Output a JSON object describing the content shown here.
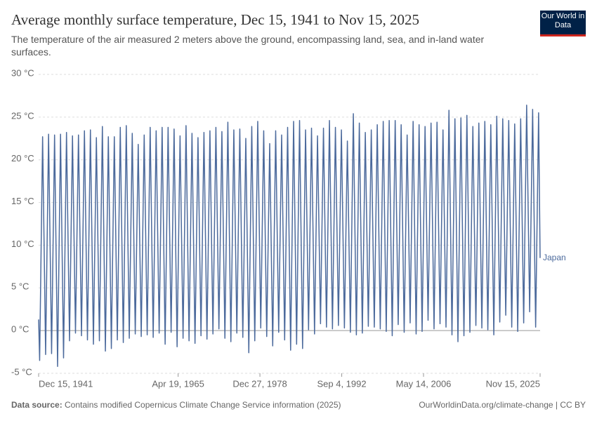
{
  "chart_data": {
    "type": "line",
    "title": "Average monthly surface temperature, Dec 15, 1941 to Nov 15, 2025",
    "subtitle": "The temperature of the air measured 2 meters above the ground, encompassing land, sea, and in-land water surfaces.",
    "logo": "Our World in Data",
    "source_label": "Data source:",
    "source": "Contains modified Copernicus Climate Change Service information (2025)",
    "credit": "OurWorldinData.org/climate-change | CC BY",
    "ylim": [
      -5,
      30
    ],
    "yticks": [
      {
        "value": -5,
        "label": "-5 °C"
      },
      {
        "value": 0,
        "label": "0 °C"
      },
      {
        "value": 5,
        "label": "5 °C"
      },
      {
        "value": 10,
        "label": "10 °C"
      },
      {
        "value": 15,
        "label": "15 °C"
      },
      {
        "value": 20,
        "label": "20 °C"
      },
      {
        "value": 25,
        "label": "25 °C"
      },
      {
        "value": 30,
        "label": "30 °C"
      }
    ],
    "xlim": [
      "Dec 15, 1941",
      "Nov 15, 2025"
    ],
    "xticks": [
      "Dec 15, 1941",
      "Apr 19, 1965",
      "Dec 27, 1978",
      "Sep 4, 1992",
      "May 14, 2006",
      "Nov 15, 2025"
    ],
    "grid": true,
    "x": [
      "Dec 15, 1941",
      "Feb 15, 1942",
      "Aug 15, 1942",
      "Feb 15, 1943",
      "Aug 15, 1943",
      "Feb 15, 1944",
      "Aug 15, 1944",
      "Feb 15, 1945",
      "Aug 15, 1945",
      "Feb 15, 1946",
      "Aug 15, 1946",
      "Feb 15, 1947",
      "Aug 15, 1947",
      "Feb 15, 1948",
      "Aug 15, 1948",
      "Feb 15, 1949",
      "Aug 15, 1949",
      "Feb 15, 1950",
      "Aug 15, 1950",
      "Feb 15, 1951",
      "Aug 15, 1951",
      "Feb 15, 1952",
      "Aug 15, 1952",
      "Feb 15, 1953",
      "Aug 15, 1953",
      "Feb 15, 1954",
      "Aug 15, 1954",
      "Feb 15, 1955",
      "Aug 15, 1955",
      "Feb 15, 1956",
      "Aug 15, 1956",
      "Feb 15, 1957",
      "Aug 15, 1957",
      "Feb 15, 1958",
      "Aug 15, 1958",
      "Feb 15, 1959",
      "Aug 15, 1959",
      "Feb 15, 1960",
      "Aug 15, 1960",
      "Feb 15, 1961",
      "Aug 15, 1961",
      "Feb 15, 1962",
      "Aug 15, 1962",
      "Feb 15, 1963",
      "Aug 15, 1963",
      "Feb 15, 1964",
      "Aug 15, 1964",
      "Feb 15, 1965",
      "Aug 15, 1965",
      "Feb 15, 1966",
      "Aug 15, 1966",
      "Feb 15, 1967",
      "Aug 15, 1967",
      "Feb 15, 1968",
      "Aug 15, 1968",
      "Feb 15, 1969",
      "Aug 15, 1969",
      "Feb 15, 1970",
      "Aug 15, 1970",
      "Feb 15, 1971",
      "Aug 15, 1971",
      "Feb 15, 1972",
      "Aug 15, 1972",
      "Feb 15, 1973",
      "Aug 15, 1973",
      "Feb 15, 1974",
      "Aug 15, 1974",
      "Feb 15, 1975",
      "Aug 15, 1975",
      "Feb 15, 1976",
      "Aug 15, 1976",
      "Feb 15, 1977",
      "Aug 15, 1977",
      "Feb 15, 1978",
      "Aug 15, 1978",
      "Feb 15, 1979",
      "Aug 15, 1979",
      "Feb 15, 1980",
      "Aug 15, 1980",
      "Feb 15, 1981",
      "Aug 15, 1981",
      "Feb 15, 1982",
      "Aug 15, 1982",
      "Feb 15, 1983",
      "Aug 15, 1983",
      "Feb 15, 1984",
      "Aug 15, 1984",
      "Feb 15, 1985",
      "Aug 15, 1985",
      "Feb 15, 1986",
      "Aug 15, 1986",
      "Feb 15, 1987",
      "Aug 15, 1987",
      "Feb 15, 1988",
      "Aug 15, 1988",
      "Feb 15, 1989",
      "Aug 15, 1989",
      "Feb 15, 1990",
      "Aug 15, 1990",
      "Feb 15, 1991",
      "Aug 15, 1991",
      "Feb 15, 1992",
      "Aug 15, 1992",
      "Feb 15, 1993",
      "Aug 15, 1993",
      "Feb 15, 1994",
      "Aug 15, 1994",
      "Feb 15, 1995",
      "Aug 15, 1995",
      "Feb 15, 1996",
      "Aug 15, 1996",
      "Feb 15, 1997",
      "Aug 15, 1997",
      "Feb 15, 1998",
      "Aug 15, 1998",
      "Feb 15, 1999",
      "Aug 15, 1999",
      "Feb 15, 2000",
      "Aug 15, 2000",
      "Feb 15, 2001",
      "Aug 15, 2001",
      "Feb 15, 2002",
      "Aug 15, 2002",
      "Feb 15, 2003",
      "Aug 15, 2003",
      "Feb 15, 2004",
      "Aug 15, 2004",
      "Feb 15, 2005",
      "Aug 15, 2005",
      "Feb 15, 2006",
      "Aug 15, 2006",
      "Feb 15, 2007",
      "Aug 15, 2007",
      "Feb 15, 2008",
      "Aug 15, 2008",
      "Feb 15, 2009",
      "Aug 15, 2009",
      "Feb 15, 2010",
      "Aug 15, 2010",
      "Feb 15, 2011",
      "Aug 15, 2011",
      "Feb 15, 2012",
      "Aug 15, 2012",
      "Feb 15, 2013",
      "Aug 15, 2013",
      "Feb 15, 2014",
      "Aug 15, 2014",
      "Feb 15, 2015",
      "Aug 15, 2015",
      "Feb 15, 2016",
      "Aug 15, 2016",
      "Feb 15, 2017",
      "Aug 15, 2017",
      "Feb 15, 2018",
      "Aug 15, 2018",
      "Feb 15, 2019",
      "Aug 15, 2019",
      "Feb 15, 2020",
      "Aug 15, 2020",
      "Feb 15, 2021",
      "Aug 15, 2021",
      "Feb 15, 2022",
      "Aug 15, 2022",
      "Feb 15, 2023",
      "Aug 15, 2023",
      "Feb 15, 2024",
      "Aug 15, 2024",
      "Feb 15, 2025",
      "Aug 15, 2025",
      "Nov 15, 2025"
    ],
    "series": [
      {
        "name": "Japan",
        "color": "#4c6a9c",
        "values": [
          1.3,
          -3.5,
          22.7,
          -2.8,
          23.0,
          -2.7,
          22.9,
          -4.2,
          23.0,
          -3.2,
          23.2,
          -1.2,
          22.8,
          -0.3,
          22.9,
          -0.6,
          23.4,
          -1.1,
          23.5,
          -1.6,
          22.6,
          -1.2,
          23.9,
          -2.4,
          22.7,
          -2.1,
          22.7,
          -1.1,
          23.8,
          -1.4,
          24.0,
          -0.9,
          23.1,
          -0.4,
          21.8,
          -0.7,
          22.9,
          -0.5,
          23.8,
          -0.8,
          23.4,
          -0.3,
          23.8,
          -1.6,
          23.8,
          -0.2,
          23.6,
          -1.9,
          22.8,
          -0.9,
          24.0,
          -1.2,
          23.1,
          -1.5,
          22.6,
          -0.6,
          23.2,
          -1.0,
          23.4,
          -0.4,
          23.8,
          0.2,
          23.3,
          -0.9,
          24.4,
          -1.3,
          23.5,
          -0.3,
          23.6,
          -0.8,
          22.5,
          -2.6,
          23.9,
          -1.2,
          24.5,
          0.3,
          23.4,
          -0.7,
          21.9,
          -1.8,
          23.4,
          -0.2,
          22.9,
          -1.1,
          23.8,
          -2.3,
          24.5,
          -1.6,
          24.6,
          -2.1,
          23.5,
          0.1,
          23.7,
          -0.4,
          22.8,
          0.8,
          23.7,
          0.4,
          24.6,
          0.2,
          23.8,
          0.6,
          23.5,
          0.3,
          22.2,
          -0.2,
          25.4,
          -0.5,
          24.3,
          -0.3,
          23.2,
          0.5,
          23.5,
          0.4,
          24.1,
          0.2,
          24.5,
          -0.1,
          24.6,
          -0.6,
          24.6,
          0.7,
          24.1,
          -0.2,
          22.9,
          0.9,
          24.5,
          -0.4,
          24.1,
          -0.1,
          23.9,
          1.2,
          24.3,
          0.2,
          24.4,
          0.8,
          23.5,
          0.4,
          25.8,
          -0.5,
          24.8,
          -1.3,
          24.9,
          -0.6,
          25.2,
          -0.2,
          23.9,
          0.6,
          24.3,
          0.3,
          24.5,
          0.1,
          24.1,
          -0.5,
          25.1,
          1.0,
          24.8,
          1.8,
          24.6,
          0.4,
          24.2,
          -0.1,
          24.8,
          0.9,
          26.4,
          2.2,
          25.9,
          0.4,
          25.5,
          8.5
        ]
      }
    ]
  }
}
